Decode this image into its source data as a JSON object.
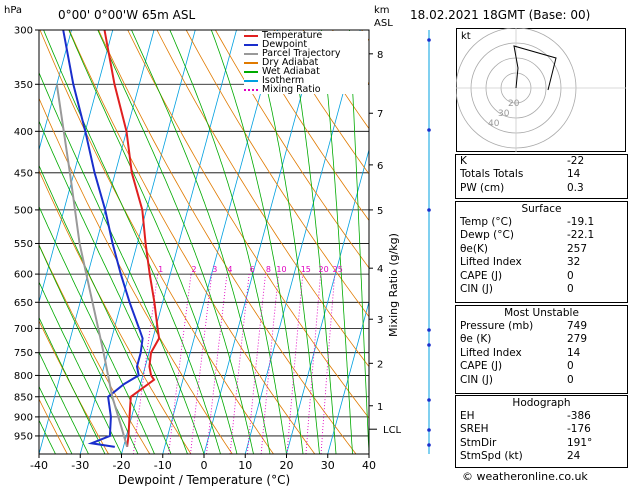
{
  "header": {
    "hpa_label": "hPa",
    "location": "0°00'  0°00'W  65m  ASL",
    "km_label": "km",
    "asl_label": "ASL",
    "datetime": "18.02.2021  18GMT  (Base: 00)"
  },
  "legend": [
    {
      "label": "Temperature",
      "color": "#e02020",
      "style": "solid"
    },
    {
      "label": "Dewpoint",
      "color": "#1a2ecc",
      "style": "solid"
    },
    {
      "label": "Parcel Trajectory",
      "color": "#999999",
      "style": "solid"
    },
    {
      "label": "Dry Adiabat",
      "color": "#e07a00",
      "style": "solid"
    },
    {
      "label": "Wet Adiabat",
      "color": "#00aa00",
      "style": "solid"
    },
    {
      "label": "Isotherm",
      "color": "#00a0e0",
      "style": "solid"
    },
    {
      "label": "Mixing Ratio",
      "color": "#e000c0",
      "style": "dotted"
    }
  ],
  "chart_data": {
    "type": "line",
    "xlabel": "Dewpoint / Temperature (°C)",
    "ylabel_right": "Mixing Ratio (g/kg)",
    "x_ticks": [
      -40,
      -30,
      -20,
      -10,
      0,
      10,
      20,
      30,
      40
    ],
    "xlim": [
      -40,
      40
    ],
    "pressure_ticks": [
      300,
      350,
      400,
      450,
      500,
      550,
      600,
      650,
      700,
      750,
      800,
      850,
      900,
      950
    ],
    "ylim_hpa": [
      300,
      1000
    ],
    "y_scale": "log",
    "skew": true,
    "km_ticks": [
      {
        "km": "1",
        "p": 872
      },
      {
        "km": "2",
        "p": 773
      },
      {
        "km": "3",
        "p": 682
      },
      {
        "km": "4",
        "p": 590
      },
      {
        "km": "5",
        "p": 500
      },
      {
        "km": "6",
        "p": 440
      },
      {
        "km": "7",
        "p": 380
      },
      {
        "km": "8",
        "p": 321
      }
    ],
    "lcl_label": "LCL",
    "lcl_p": 932,
    "mixing_ratio_labels": [
      "1",
      "2",
      "3",
      "4",
      "6",
      "8",
      "10",
      "15",
      "20",
      "25"
    ],
    "series": [
      {
        "name": "Temperature",
        "color": "#e02020",
        "points": [
          [
            -19.1,
            980
          ],
          [
            -19.5,
            950
          ],
          [
            -20.5,
            900
          ],
          [
            -21.5,
            850
          ],
          [
            -17,
            810
          ],
          [
            -18,
            800
          ],
          [
            -19,
            780
          ],
          [
            -19.5,
            750
          ],
          [
            -18.5,
            720
          ],
          [
            -19.5,
            700
          ],
          [
            -22,
            650
          ],
          [
            -25,
            600
          ],
          [
            -28,
            550
          ],
          [
            -31,
            500
          ],
          [
            -36,
            450
          ],
          [
            -40,
            400
          ],
          [
            -46,
            350
          ],
          [
            -52,
            300
          ]
        ]
      },
      {
        "name": "Dewpoint",
        "color": "#1a2ecc",
        "points": [
          [
            -22.1,
            980
          ],
          [
            -28,
            970
          ],
          [
            -24,
            950
          ],
          [
            -25,
            900
          ],
          [
            -27,
            850
          ],
          [
            -24,
            820
          ],
          [
            -21,
            800
          ],
          [
            -22,
            780
          ],
          [
            -22,
            750
          ],
          [
            -22.5,
            720
          ],
          [
            -24,
            700
          ],
          [
            -28,
            650
          ],
          [
            -32,
            600
          ],
          [
            -36,
            550
          ],
          [
            -40,
            500
          ],
          [
            -45,
            450
          ],
          [
            -50,
            400
          ],
          [
            -56,
            350
          ],
          [
            -62,
            300
          ]
        ]
      },
      {
        "name": "Parcel Trajectory",
        "color": "#999999",
        "points": [
          [
            -19.1,
            980
          ],
          [
            -21.5,
            932
          ],
          [
            -26,
            850
          ],
          [
            -31,
            750
          ],
          [
            -37,
            650
          ],
          [
            -44,
            550
          ],
          [
            -51,
            450
          ],
          [
            -60,
            350
          ]
        ]
      }
    ]
  },
  "hodograph": {
    "label": "kt",
    "ring_labels": [
      "40",
      "30",
      "20"
    ]
  },
  "indices": [
    {
      "name": "K",
      "value": "-22"
    },
    {
      "name": "Totals Totals",
      "value": "14"
    },
    {
      "name": "PW (cm)",
      "value": "0.3"
    }
  ],
  "surface": {
    "title": "Surface",
    "rows": [
      {
        "name": "Temp (°C)",
        "value": "-19.1"
      },
      {
        "name": "Dewp (°C)",
        "value": "-22.1"
      },
      {
        "name": "θe(K)",
        "value": "257"
      },
      {
        "name": "Lifted Index",
        "value": "32"
      },
      {
        "name": "CAPE (J)",
        "value": "0"
      },
      {
        "name": "CIN (J)",
        "value": "0"
      }
    ]
  },
  "most_unstable": {
    "title": "Most Unstable",
    "rows": [
      {
        "name": "Pressure (mb)",
        "value": "749"
      },
      {
        "name": "θe (K)",
        "value": "279"
      },
      {
        "name": "Lifted Index",
        "value": "14"
      },
      {
        "name": "CAPE (J)",
        "value": "0"
      },
      {
        "name": "CIN (J)",
        "value": "0"
      }
    ]
  },
  "hodograph_table": {
    "title": "Hodograph",
    "rows": [
      {
        "name": "EH",
        "value": "-386"
      },
      {
        "name": "SREH",
        "value": "-176"
      },
      {
        "name": "StmDir",
        "value": "191°"
      },
      {
        "name": "StmSpd (kt)",
        "value": "24"
      }
    ]
  },
  "footer": "© weatheronline.co.uk"
}
